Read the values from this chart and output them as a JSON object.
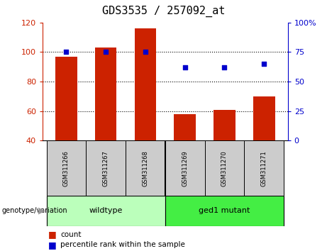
{
  "title": "GDS3535 / 257092_at",
  "samples": [
    "GSM311266",
    "GSM311267",
    "GSM311268",
    "GSM311269",
    "GSM311270",
    "GSM311271"
  ],
  "counts": [
    97,
    103,
    116,
    58,
    61,
    70
  ],
  "percentile_ranks": [
    75,
    75,
    75,
    62,
    62,
    65
  ],
  "bar_color": "#cc2200",
  "dot_color": "#0000cc",
  "ylim_left": [
    40,
    120
  ],
  "ylim_right": [
    0,
    100
  ],
  "yticks_left": [
    40,
    60,
    80,
    100,
    120
  ],
  "yticks_right": [
    0,
    25,
    50,
    75,
    100
  ],
  "yticklabels_right": [
    "0",
    "25",
    "50",
    "75",
    "100%"
  ],
  "dotted_lines": [
    60,
    80,
    100
  ],
  "genotype_groups": [
    {
      "label": "wildtype",
      "indices": [
        0,
        1,
        2
      ],
      "color": "#bbffbb"
    },
    {
      "label": "ged1 mutant",
      "indices": [
        3,
        4,
        5
      ],
      "color": "#44ee44"
    }
  ],
  "genotype_label": "genotype/variation",
  "legend_count_label": "count",
  "legend_percentile_label": "percentile rank within the sample",
  "title_fontsize": 11,
  "axis_color_left": "#cc2200",
  "axis_color_right": "#0000cc",
  "sample_box_color": "#cccccc",
  "bg_color": "#ffffff"
}
